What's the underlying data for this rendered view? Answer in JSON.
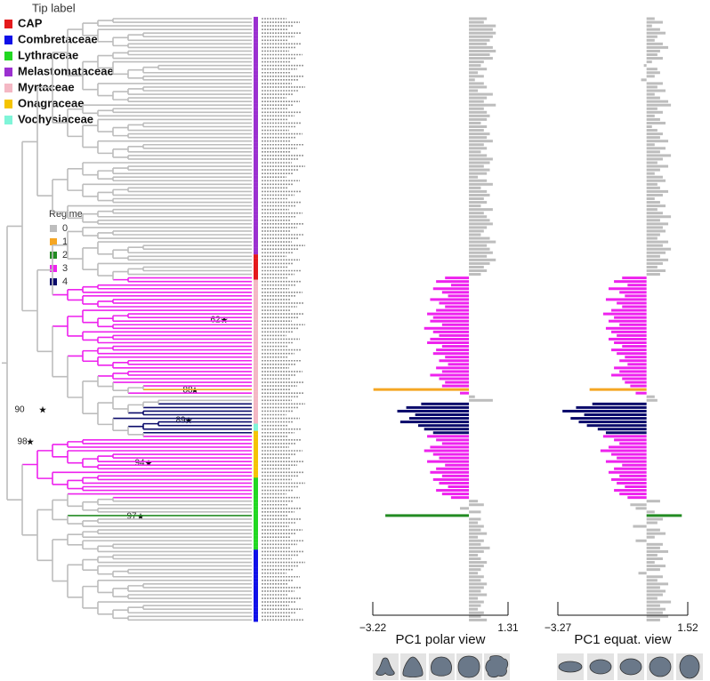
{
  "legend_tip": {
    "title": "Tip label",
    "items": [
      {
        "name": "CAP",
        "color": "#e41a1c"
      },
      {
        "name": "Combretaceae",
        "color": "#1010e8"
      },
      {
        "name": "Lythraceae",
        "color": "#22d822"
      },
      {
        "name": "Melastomataceae",
        "color": "#9b30d0"
      },
      {
        "name": "Myrtaceae",
        "color": "#f4b8c4"
      },
      {
        "name": "Onagraceae",
        "color": "#f5c400"
      },
      {
        "name": "Vochysiaceae",
        "color": "#7ff5d8"
      }
    ]
  },
  "legend_regime": {
    "title": "Regime",
    "items": [
      {
        "name": 0,
        "color": "#bdbdbd"
      },
      {
        "name": 1,
        "color": "#f5a623"
      },
      {
        "name": 2,
        "color": "#228b22"
      },
      {
        "name": 3,
        "color": "#ee22ee"
      },
      {
        "name": 4,
        "color": "#0b0b6b"
      }
    ]
  },
  "node_labels": [
    90,
    88,
    62,
    89,
    98,
    94,
    97
  ],
  "tips": {
    "family": [
      "Melastomataceae",
      "Melastomataceae",
      "Melastomataceae",
      "Melastomataceae",
      "Melastomataceae",
      "Melastomataceae",
      "Melastomataceae",
      "Melastomataceae",
      "Melastomataceae",
      "Melastomataceae",
      "Melastomataceae",
      "Melastomataceae",
      "Melastomataceae",
      "Melastomataceae",
      "Melastomataceae",
      "Melastomataceae",
      "Melastomataceae",
      "Melastomataceae",
      "Melastomataceae",
      "Melastomataceae",
      "Melastomataceae",
      "Melastomataceae",
      "Melastomataceae",
      "Melastomataceae",
      "Melastomataceae",
      "Melastomataceae",
      "Melastomataceae",
      "Melastomataceae",
      "Melastomataceae",
      "Melastomataceae",
      "Melastomataceae",
      "Melastomataceae",
      "Melastomataceae",
      "Melastomataceae",
      "Melastomataceae",
      "Melastomataceae",
      "Melastomataceae",
      "Melastomataceae",
      "Melastomataceae",
      "Melastomataceae",
      "Melastomataceae",
      "Melastomataceae",
      "Melastomataceae",
      "Melastomataceae",
      "Melastomataceae",
      "Melastomataceae",
      "Melastomataceae",
      "Melastomataceae",
      "Melastomataceae",
      "Melastomataceae",
      "Melastomataceae",
      "Melastomataceae",
      "Melastomataceae",
      "Melastomataceae",
      "Melastomataceae",
      "Melastomataceae",
      "Melastomataceae",
      "Melastomataceae",
      "Melastomataceae",
      "Melastomataceae",
      "Melastomataceae",
      "Melastomataceae",
      "Melastomataceae",
      "Melastomataceae",
      "Melastomataceae",
      "Melastomataceae",
      "CAP",
      "CAP",
      "CAP",
      "CAP",
      "CAP",
      "CAP",
      "CAP",
      "Myrtaceae",
      "Myrtaceae",
      "Myrtaceae",
      "Myrtaceae",
      "Myrtaceae",
      "Myrtaceae",
      "Myrtaceae",
      "Myrtaceae",
      "Myrtaceae",
      "Myrtaceae",
      "Myrtaceae",
      "Myrtaceae",
      "Myrtaceae",
      "Myrtaceae",
      "Myrtaceae",
      "Myrtaceae",
      "Myrtaceae",
      "Myrtaceae",
      "Myrtaceae",
      "Myrtaceae",
      "Myrtaceae",
      "Myrtaceae",
      "Myrtaceae",
      "Myrtaceae",
      "Myrtaceae",
      "Myrtaceae",
      "Myrtaceae",
      "Myrtaceae",
      "Myrtaceae",
      "Myrtaceae",
      "Myrtaceae",
      "Myrtaceae",
      "Myrtaceae",
      "Myrtaceae",
      "Myrtaceae",
      "Myrtaceae",
      "Myrtaceae",
      "Myrtaceae",
      "Myrtaceae",
      "Myrtaceae",
      "Vochysiaceae",
      "Vochysiaceae",
      "Onagraceae",
      "Onagraceae",
      "Onagraceae",
      "Onagraceae",
      "Onagraceae",
      "Onagraceae",
      "Onagraceae",
      "Onagraceae",
      "Onagraceae",
      "Onagraceae",
      "Onagraceae",
      "Onagraceae",
      "Onagraceae",
      "Lythraceae",
      "Lythraceae",
      "Lythraceae",
      "Lythraceae",
      "Lythraceae",
      "Lythraceae",
      "Lythraceae",
      "Lythraceae",
      "Lythraceae",
      "Lythraceae",
      "Lythraceae",
      "Lythraceae",
      "Lythraceae",
      "Lythraceae",
      "Lythraceae",
      "Lythraceae",
      "Lythraceae",
      "Lythraceae",
      "Lythraceae",
      "Lythraceae",
      "Combretaceae",
      "Combretaceae",
      "Combretaceae",
      "Combretaceae",
      "Combretaceae",
      "Combretaceae",
      "Combretaceae",
      "Combretaceae",
      "Combretaceae",
      "Combretaceae",
      "Combretaceae",
      "Combretaceae",
      "Combretaceae",
      "Combretaceae",
      "Combretaceae",
      "Combretaceae",
      "Combretaceae",
      "Combretaceae",
      "Combretaceae",
      "Combretaceae"
    ],
    "regime": [
      0,
      0,
      0,
      0,
      0,
      0,
      0,
      0,
      0,
      0,
      0,
      0,
      0,
      0,
      0,
      0,
      0,
      0,
      0,
      0,
      0,
      0,
      0,
      0,
      0,
      0,
      0,
      0,
      0,
      0,
      0,
      0,
      0,
      0,
      0,
      0,
      0,
      0,
      0,
      0,
      0,
      0,
      0,
      0,
      0,
      0,
      0,
      0,
      0,
      0,
      0,
      0,
      0,
      0,
      0,
      0,
      0,
      0,
      0,
      0,
      0,
      0,
      0,
      0,
      0,
      0,
      0,
      0,
      0,
      0,
      0,
      0,
      3,
      3,
      3,
      3,
      3,
      3,
      3,
      3,
      3,
      3,
      3,
      3,
      3,
      3,
      3,
      3,
      3,
      3,
      3,
      3,
      3,
      3,
      3,
      3,
      3,
      3,
      3,
      3,
      3,
      3,
      3,
      1,
      3,
      0,
      0,
      4,
      4,
      4,
      4,
      4,
      4,
      4,
      4,
      4,
      3,
      3,
      3,
      3,
      3,
      3,
      3,
      3,
      3,
      3,
      3,
      3,
      3,
      3,
      3,
      3,
      3,
      3,
      0,
      0,
      0,
      0,
      2,
      0,
      0,
      0,
      0,
      0,
      0,
      0,
      0,
      0,
      0,
      0,
      0,
      0,
      0,
      0,
      0,
      0,
      0,
      0,
      0,
      0,
      0,
      0,
      0,
      0,
      0,
      0,
      0,
      0
    ]
  },
  "chart_data": [
    {
      "type": "bar",
      "orientation": "horizontal",
      "title": "PC1 polar view",
      "xlim": [
        -3.22,
        1.31
      ],
      "xticks": [
        {
          "value": -3.22,
          "label": "−3.22"
        },
        1.31
      ],
      "values": [
        0.6,
        0.5,
        0.9,
        0.8,
        0.9,
        0.8,
        0.7,
        0.6,
        0.8,
        0.9,
        0.7,
        0.8,
        0.5,
        0.4,
        0.6,
        0.3,
        0.5,
        0.2,
        0.5,
        0.6,
        0.3,
        0.8,
        0.6,
        0.5,
        0.9,
        0.5,
        0.6,
        0.7,
        0.6,
        0.4,
        0.6,
        0.5,
        0.7,
        0.6,
        0.8,
        0.5,
        0.6,
        0.4,
        0.6,
        0.8,
        0.7,
        0.5,
        0.7,
        0.6,
        0.3,
        0.6,
        0.8,
        0.4,
        0.6,
        0.7,
        0.5,
        0.6,
        0.4,
        0.8,
        0.5,
        0.6,
        0.7,
        0.8,
        0.6,
        0.5,
        0.4,
        0.7,
        0.9,
        0.6,
        0.7,
        0.8,
        0.6,
        0.9,
        0.7,
        0.5,
        0.6,
        0.4,
        -0.8,
        -1.1,
        -0.6,
        -1.2,
        -0.9,
        -0.7,
        -1.3,
        -1.0,
        -0.8,
        -1.1,
        -1.4,
        -1.2,
        -1.3,
        -0.9,
        -1.5,
        -1.2,
        -1.0,
        -1.3,
        -1.4,
        -0.9,
        -1.1,
        -1.2,
        -0.8,
        -1.0,
        -0.7,
        -1.1,
        -0.9,
        -1.3,
        -1.0,
        -0.8,
        -0.9,
        -3.2,
        -0.3,
        0.2,
        0.8,
        -1.6,
        -2.1,
        -2.4,
        -1.8,
        -2.0,
        -2.3,
        -1.7,
        -1.5,
        -1.2,
        -1.4,
        -1.1,
        -0.9,
        -1.3,
        -1.5,
        -1.2,
        -1.0,
        -1.4,
        -0.8,
        -1.1,
        -1.3,
        -0.9,
        -1.2,
        -1.0,
        -0.7,
        -1.1,
        -0.9,
        -0.6,
        0.3,
        0.5,
        -0.3,
        0.4,
        -2.8,
        0.4,
        0.3,
        0.5,
        0.4,
        0.6,
        0.3,
        0.5,
        0.4,
        0.7,
        0.5,
        0.3,
        0.4,
        0.6,
        0.5,
        0.4,
        0.3,
        0.5,
        0.4,
        0.6,
        0.5,
        0.4,
        0.6,
        0.3,
        0.5,
        0.4,
        0.3,
        0.5,
        0.4,
        0.6
      ]
    },
    {
      "type": "bar",
      "orientation": "horizontal",
      "title": "PC1 equat. view",
      "xlim": [
        -3.27,
        1.52
      ],
      "xticks": [
        {
          "value": -3.27,
          "label": "−3.27"
        },
        1.52
      ],
      "values": [
        0.3,
        0.6,
        0.2,
        0.5,
        0.7,
        0.4,
        0.3,
        0.6,
        0.8,
        0.5,
        0.4,
        0.6,
        0.2,
        -0.1,
        0.4,
        0.5,
        0.3,
        -0.2,
        0.6,
        0.4,
        0.7,
        0.3,
        0.5,
        0.8,
        0.9,
        0.4,
        0.6,
        0.3,
        0.5,
        0.7,
        0.2,
        0.4,
        0.6,
        0.5,
        0.8,
        0.3,
        0.7,
        0.5,
        0.9,
        0.6,
        0.4,
        0.8,
        0.5,
        0.3,
        0.6,
        0.7,
        0.4,
        0.5,
        0.8,
        0.6,
        0.3,
        0.5,
        0.7,
        0.4,
        0.6,
        0.9,
        0.5,
        0.8,
        0.6,
        0.7,
        0.5,
        0.4,
        0.8,
        0.6,
        0.9,
        0.7,
        0.5,
        0.8,
        0.6,
        0.4,
        0.7,
        0.5,
        -0.9,
        -1.2,
        -0.7,
        -1.4,
        -1.0,
        -0.8,
        -1.5,
        -1.1,
        -0.9,
        -1.3,
        -1.6,
        -1.2,
        -1.4,
        -1.0,
        -1.5,
        -1.3,
        -1.1,
        -1.4,
        -1.2,
        -0.9,
        -1.3,
        -1.1,
        -0.8,
        -1.0,
        -0.7,
        -1.2,
        -1.0,
        -1.3,
        -0.9,
        -0.8,
        -0.6,
        -2.1,
        -0.4,
        0.3,
        0.4,
        -2.0,
        -2.6,
        -3.1,
        -2.3,
        -2.8,
        -2.5,
        -2.2,
        -1.8,
        -1.5,
        -1.6,
        -1.2,
        -1.0,
        -1.4,
        -1.7,
        -1.3,
        -1.1,
        -1.5,
        -0.9,
        -1.2,
        -1.4,
        -1.0,
        -1.3,
        -1.1,
        -0.8,
        -1.2,
        -1.0,
        -0.7,
        0.5,
        -0.6,
        -0.4,
        0.3,
        1.3,
        0.6,
        0.4,
        -0.5,
        0.5,
        0.7,
        0.3,
        -0.4,
        0.6,
        0.5,
        0.8,
        0.4,
        0.6,
        0.3,
        0.7,
        0.5,
        -0.3,
        0.6,
        0.4,
        0.8,
        0.5,
        0.7,
        0.6,
        0.4,
        0.9,
        0.5,
        0.7,
        0.6,
        0.8,
        0.5
      ]
    }
  ]
}
